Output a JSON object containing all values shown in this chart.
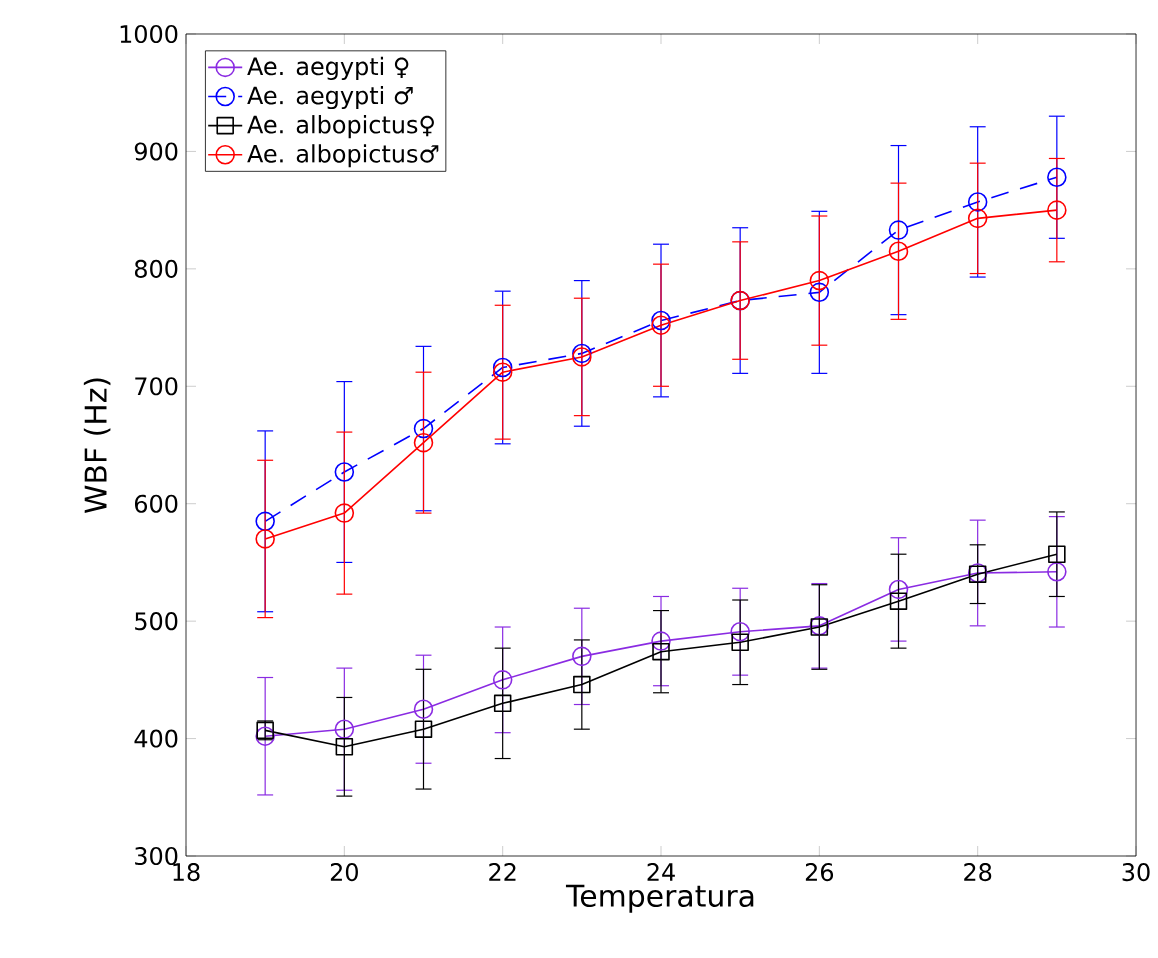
{
  "chart_data": {
    "type": "line",
    "xlabel": "Temperatura",
    "ylabel": "WBF (Hz)",
    "x": [
      19,
      20,
      21,
      22,
      23,
      24,
      25,
      26,
      27,
      28,
      29
    ],
    "xlim": [
      18,
      30
    ],
    "xticks": [
      18,
      20,
      22,
      24,
      26,
      28,
      30
    ],
    "ylim": [
      300,
      1000
    ],
    "yticks": [
      300,
      400,
      500,
      600,
      700,
      800,
      900,
      1000
    ],
    "grid": false,
    "legend": "top left",
    "series": [
      {
        "name": "Ae. aegypti ♀",
        "color": "#8a2be2",
        "marker": "circle",
        "line_style": "solid",
        "values": [
          402,
          408,
          425,
          450,
          470,
          483,
          491,
          496,
          527,
          541,
          542
        ],
        "errors": [
          50,
          52,
          46,
          45,
          41,
          38,
          37,
          36,
          44,
          45,
          47
        ]
      },
      {
        "name": "Ae. aegypti ♂",
        "color": "#0000ff",
        "marker": "circle",
        "line_style": "dashed",
        "values": [
          585,
          627,
          664,
          716,
          728,
          756,
          773,
          780,
          833,
          857,
          878
        ],
        "errors": [
          77,
          77,
          70,
          65,
          62,
          65,
          62,
          69,
          72,
          64,
          52
        ]
      },
      {
        "name": "Ae. albopictus♀",
        "color": "#000000",
        "marker": "square",
        "line_style": "solid",
        "values": [
          407,
          393,
          408,
          430,
          446,
          474,
          482,
          495,
          517,
          540,
          557
        ],
        "errors": [
          8,
          42,
          51,
          47,
          38,
          35,
          36,
          36,
          40,
          25,
          36
        ]
      },
      {
        "name": "Ae. albopictus♂",
        "color": "#ff0000",
        "marker": "circle",
        "line_style": "solid",
        "values": [
          570,
          592,
          652,
          712,
          725,
          752,
          773,
          790,
          815,
          843,
          850
        ],
        "errors": [
          67,
          69,
          60,
          57,
          50,
          52,
          50,
          55,
          58,
          47,
          44
        ]
      }
    ]
  }
}
